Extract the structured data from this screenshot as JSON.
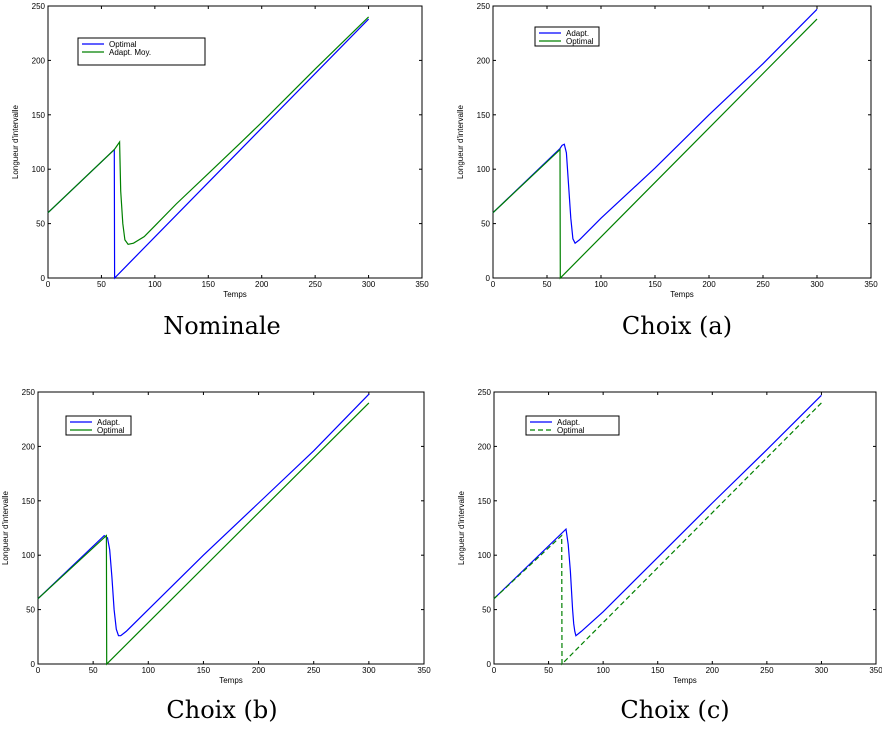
{
  "chart_data": [
    {
      "type": "line",
      "caption": "Nominale",
      "xlabel": "Temps",
      "ylabel": "Longueur d'intervalle",
      "xlim": [
        0,
        350
      ],
      "ylim": [
        0,
        250
      ],
      "xticks": [
        0,
        50,
        100,
        150,
        200,
        250,
        300,
        350
      ],
      "yticks": [
        0,
        50,
        100,
        150,
        200,
        250
      ],
      "grid": false,
      "legend": "top-left",
      "series": [
        {
          "name": "Optimal",
          "color": "#0000ff",
          "dash": "solid",
          "x": [
            0,
            62,
            62.3,
            300
          ],
          "y": [
            60,
            118,
            0,
            238
          ]
        },
        {
          "name": "Adapt. Moy.",
          "color": "#008000",
          "dash": "solid",
          "x": [
            0,
            62,
            67,
            68,
            70,
            72,
            75,
            80,
            90,
            100,
            120,
            150,
            180,
            200,
            250,
            300
          ],
          "y": [
            60,
            118,
            125,
            80,
            50,
            35,
            31,
            32,
            38,
            48,
            68,
            96,
            124,
            143,
            192,
            240
          ]
        }
      ]
    },
    {
      "type": "line",
      "caption": "Choix (a)",
      "xlabel": "Temps",
      "ylabel": "Longueur d'intervalle",
      "xlim": [
        0,
        350
      ],
      "ylim": [
        0,
        250
      ],
      "xticks": [
        0,
        50,
        100,
        150,
        200,
        250,
        300,
        350
      ],
      "yticks": [
        0,
        50,
        100,
        150,
        200,
        250
      ],
      "grid": false,
      "legend": "top-left",
      "series": [
        {
          "name": "Adapt.",
          "color": "#0000ff",
          "dash": "solid",
          "x": [
            0,
            62,
            64,
            66,
            68,
            70,
            72,
            74,
            76,
            80,
            100,
            150,
            200,
            250,
            300
          ],
          "y": [
            60,
            119,
            122,
            123,
            115,
            85,
            55,
            36,
            32,
            35,
            55,
            101,
            150,
            197,
            247
          ]
        },
        {
          "name": "Optimal",
          "color": "#008000",
          "dash": "solid",
          "x": [
            0,
            62,
            62.3,
            300
          ],
          "y": [
            60,
            118,
            0,
            238
          ]
        }
      ]
    },
    {
      "type": "line",
      "caption": "Choix (b)",
      "xlabel": "Temps",
      "ylabel": "Longueur d'intervalle",
      "xlim": [
        0,
        350
      ],
      "ylim": [
        0,
        250
      ],
      "xticks": [
        0,
        50,
        100,
        150,
        200,
        250,
        300,
        350
      ],
      "yticks": [
        0,
        50,
        100,
        150,
        200,
        250
      ],
      "grid": false,
      "legend": "top-left",
      "series": [
        {
          "name": "Adapt.",
          "color": "#0000ff",
          "dash": "solid",
          "x": [
            0,
            60,
            63,
            65,
            67,
            69,
            71,
            73,
            75,
            80,
            100,
            150,
            200,
            250,
            300
          ],
          "y": [
            60,
            118,
            116,
            105,
            80,
            50,
            32,
            26,
            26,
            30,
            50,
            100,
            148,
            196,
            248
          ]
        },
        {
          "name": "Optimal",
          "color": "#008000",
          "dash": "solid",
          "x": [
            0,
            62,
            62.3,
            300
          ],
          "y": [
            60,
            118,
            0,
            240
          ]
        }
      ]
    },
    {
      "type": "line",
      "caption": "Choix (c)",
      "xlabel": "Temps",
      "ylabel": "Longueur d'intervalle",
      "xlim": [
        0,
        350
      ],
      "ylim": [
        0,
        250
      ],
      "xticks": [
        0,
        50,
        100,
        150,
        200,
        250,
        300,
        350
      ],
      "yticks": [
        0,
        50,
        100,
        150,
        200,
        250
      ],
      "grid": false,
      "legend": "top-left",
      "series": [
        {
          "name": "Adapt.",
          "color": "#0000ff",
          "dash": "solid",
          "x": [
            0,
            66,
            68,
            70,
            72,
            73,
            74,
            75,
            80,
            100,
            150,
            200,
            250,
            300
          ],
          "y": [
            60,
            124,
            110,
            85,
            50,
            37,
            30,
            26,
            30,
            48,
            98,
            148,
            197,
            247
          ]
        },
        {
          "name": "Optimal",
          "color": "#008000",
          "dash": "dashed",
          "x": [
            0,
            62,
            62.3,
            300
          ],
          "y": [
            60,
            118,
            0,
            240
          ]
        }
      ]
    }
  ]
}
